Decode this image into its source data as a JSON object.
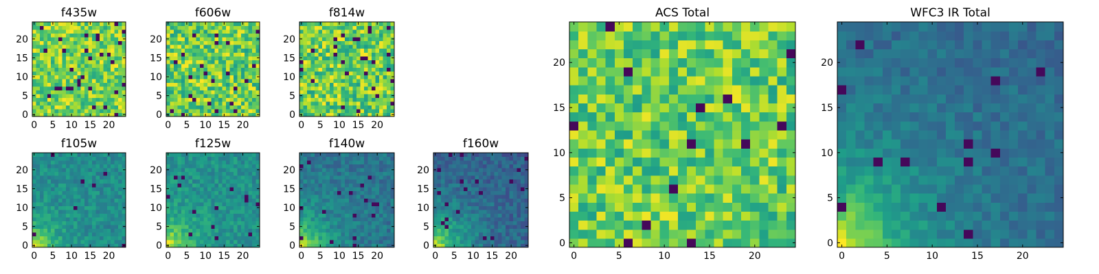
{
  "chart_data": [
    {
      "type": "heatmap",
      "title": "f435w",
      "colormap": "viridis",
      "grid": false,
      "xlim": [
        -0.5,
        24.5
      ],
      "ylim": [
        -0.5,
        24.5
      ],
      "xticks": [
        0,
        5,
        10,
        15,
        20
      ],
      "yticks": [
        0,
        5,
        10,
        15,
        20
      ],
      "pattern": "uniform noise",
      "value_range": [
        0.6,
        1.0
      ],
      "min_fraction": 0.04,
      "seed": 11
    },
    {
      "type": "heatmap",
      "title": "f606w",
      "colormap": "viridis",
      "grid": false,
      "xlim": [
        -0.5,
        24.5
      ],
      "ylim": [
        -0.5,
        24.5
      ],
      "xticks": [
        0,
        5,
        10,
        15,
        20
      ],
      "yticks": [
        0,
        5,
        10,
        15,
        20
      ],
      "pattern": "uniform noise",
      "value_range": [
        0.55,
        1.0
      ],
      "min_fraction": 0.03,
      "seed": 23
    },
    {
      "type": "heatmap",
      "title": "f814w",
      "colormap": "viridis",
      "grid": false,
      "xlim": [
        -0.5,
        24.5
      ],
      "ylim": [
        -0.5,
        24.5
      ],
      "xticks": [
        0,
        5,
        10,
        15,
        20
      ],
      "yticks": [
        0,
        5,
        10,
        15,
        20
      ],
      "pattern": "uniform noise",
      "value_range": [
        0.55,
        1.0
      ],
      "min_fraction": 0.03,
      "seed": 37
    },
    {
      "type": "heatmap",
      "title": "f105w",
      "colormap": "viridis",
      "grid": false,
      "xlim": [
        -0.5,
        24.5
      ],
      "ylim": [
        -0.5,
        24.5
      ],
      "xticks": [
        0,
        5,
        10,
        15,
        20
      ],
      "yticks": [
        0,
        5,
        10,
        15,
        20
      ],
      "pattern": "bright bottom-left corner",
      "background": 0.48,
      "noise": 0.1,
      "corner_peak": 0.5,
      "corner_scale": 4.5,
      "min_fraction": 0.02,
      "seed": 41
    },
    {
      "type": "heatmap",
      "title": "f125w",
      "colormap": "viridis",
      "grid": false,
      "xlim": [
        -0.5,
        24.5
      ],
      "ylim": [
        -0.5,
        24.5
      ],
      "xticks": [
        0,
        5,
        10,
        15,
        20
      ],
      "yticks": [
        0,
        5,
        10,
        15,
        20
      ],
      "pattern": "bright bottom-left corner",
      "background": 0.5,
      "noise": 0.1,
      "corner_peak": 0.5,
      "corner_scale": 5,
      "min_fraction": 0.02,
      "seed": 53
    },
    {
      "type": "heatmap",
      "title": "f140w",
      "colormap": "viridis",
      "grid": false,
      "xlim": [
        -0.5,
        24.5
      ],
      "ylim": [
        -0.5,
        24.5
      ],
      "xticks": [
        0,
        5,
        10,
        15,
        20
      ],
      "yticks": [
        0,
        5,
        10,
        15,
        20
      ],
      "pattern": "bright bottom-left corner",
      "background": 0.38,
      "noise": 0.1,
      "corner_peak": 0.58,
      "corner_scale": 6,
      "min_fraction": 0.02,
      "seed": 67
    },
    {
      "type": "heatmap",
      "title": "f160w",
      "colormap": "viridis",
      "grid": false,
      "xlim": [
        -0.5,
        24.5
      ],
      "ylim": [
        -0.5,
        24.5
      ],
      "xticks": [
        0,
        5,
        10,
        15,
        20
      ],
      "yticks": [
        0,
        5,
        10,
        15,
        20
      ],
      "pattern": "bright bottom-left corner",
      "background": 0.3,
      "noise": 0.1,
      "corner_peak": 0.66,
      "corner_scale": 7,
      "min_fraction": 0.02,
      "seed": 79
    },
    {
      "type": "heatmap",
      "title": "ACS Total",
      "colormap": "viridis",
      "grid": false,
      "xlim": [
        -0.5,
        24.5
      ],
      "ylim": [
        -0.5,
        24.5
      ],
      "xticks": [
        0,
        5,
        10,
        15,
        20
      ],
      "yticks": [
        0,
        5,
        10,
        15,
        20
      ],
      "pattern": "uniform noise",
      "value_range": [
        0.55,
        0.98
      ],
      "min_fraction": 0.015,
      "seed": 97
    },
    {
      "type": "heatmap",
      "title": "WFC3 IR Total",
      "colormap": "viridis",
      "grid": false,
      "xlim": [
        -0.5,
        24.5
      ],
      "ylim": [
        -0.5,
        24.5
      ],
      "xticks": [
        0,
        5,
        10,
        15,
        20
      ],
      "yticks": [
        0,
        5,
        10,
        15,
        20
      ],
      "pattern": "bright bottom-left corner",
      "background": 0.34,
      "noise": 0.08,
      "corner_peak": 0.64,
      "corner_scale": 7,
      "min_fraction": 0.02,
      "seed": 113
    }
  ]
}
